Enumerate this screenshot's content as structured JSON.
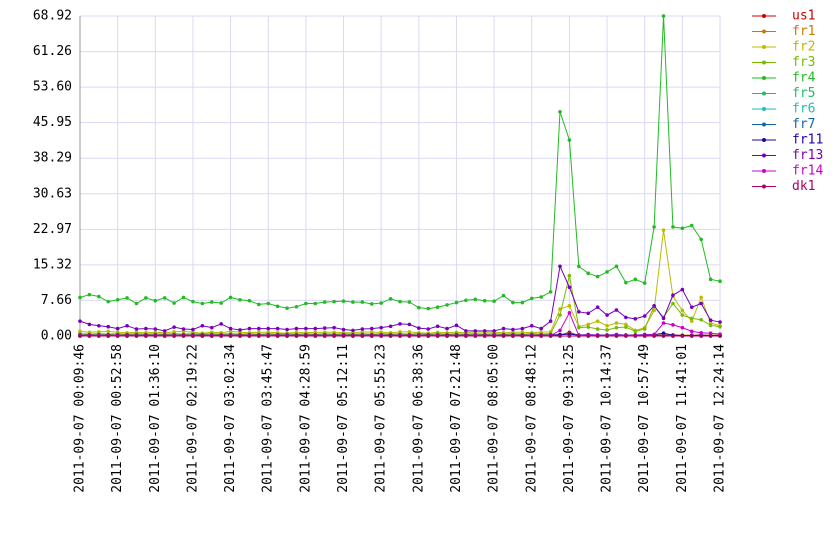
{
  "chart_data": {
    "type": "line",
    "categories": [
      "2011-09-07 00:09:46",
      null,
      null,
      null,
      "2011-09-07 00:52:58",
      null,
      null,
      null,
      "2011-09-07 01:36:10",
      null,
      null,
      null,
      "2011-09-07 02:19:22",
      null,
      null,
      null,
      "2011-09-07 03:02:34",
      null,
      null,
      null,
      "2011-09-07 03:45:47",
      null,
      null,
      null,
      "2011-09-07 04:28:59",
      null,
      null,
      null,
      "2011-09-07 05:12:11",
      null,
      null,
      null,
      "2011-09-07 05:55:23",
      null,
      null,
      null,
      "2011-09-07 06:38:36",
      null,
      null,
      null,
      "2011-09-07 07:21:48",
      null,
      null,
      null,
      "2011-09-07 08:05:00",
      null,
      null,
      null,
      "2011-09-07 08:48:12",
      null,
      null,
      null,
      "2011-09-07 09:31:25",
      null,
      null,
      null,
      "2011-09-07 10:14:37",
      null,
      null,
      null,
      "2011-09-07 10:57:49",
      null,
      null,
      null,
      "2011-09-07 11:41:01",
      null,
      null,
      null,
      "2011-09-07 12:24:14"
    ],
    "ylim": [
      0,
      68.92
    ],
    "yticks": [
      {
        "value": 0,
        "label": "0.00"
      },
      7.66,
      15.32,
      22.97,
      30.63,
      38.29,
      45.95,
      {
        "value": 53.6,
        "label": "53.60"
      },
      61.26,
      68.92
    ],
    "grid": true,
    "legend": "right",
    "series": [
      {
        "name": "us1",
        "color": "#cc0000",
        "values": [
          0,
          0,
          0,
          0,
          0,
          0,
          0,
          0,
          0,
          0,
          0,
          0,
          0,
          0,
          0,
          0,
          0,
          0,
          0,
          0,
          0,
          0,
          0,
          0,
          0,
          0,
          0,
          0,
          0,
          0,
          0,
          0,
          0,
          0,
          0,
          0,
          0,
          0,
          0,
          0,
          0,
          0,
          0,
          0,
          0,
          0,
          0,
          0,
          0,
          0,
          0,
          0.2,
          0.8,
          0.1,
          0.1,
          0.1,
          0.1,
          0.1,
          0.1,
          0.1,
          0.1,
          0.1,
          0.1,
          0.1,
          0.1,
          0.1,
          0.1,
          0.1,
          0.1
        ]
      },
      {
        "name": "fr1",
        "color": "#cc7700",
        "values": [
          0.2,
          0.2,
          0.2,
          0.2,
          0.2,
          0.2,
          0.2,
          0.2,
          0.2,
          0.2,
          0.2,
          0.2,
          0.2,
          0.2,
          0.2,
          0.2,
          0.2,
          0.2,
          0.2,
          0.2,
          0.2,
          0.2,
          0.2,
          0.2,
          0.2,
          0.2,
          0.2,
          0.2,
          0.2,
          0.2,
          0.2,
          0.2,
          0.2,
          0.2,
          0.2,
          0.2,
          0.2,
          0.2,
          0.2,
          0.2,
          0.2,
          0.2,
          0.2,
          0.2,
          0.2,
          0.2,
          0.2,
          0.2,
          0.2,
          0.2,
          0.2,
          0.3,
          0.5,
          0.2,
          0.2,
          0.2,
          0.2,
          0.2,
          0.2,
          0.2,
          0.2,
          0.3,
          0.4,
          0.2,
          0.2,
          0.2,
          0.2,
          0.2,
          0.2
        ]
      },
      {
        "name": "fr2",
        "color": "#bbbb00",
        "values": [
          1.0,
          0.8,
          0.9,
          1.0,
          0.8,
          0.7,
          0.8,
          0.7,
          0.8,
          0.7,
          0.9,
          1.0,
          0.8,
          0.6,
          0.8,
          0.7,
          1.0,
          0.8,
          0.7,
          0.8,
          0.8,
          0.7,
          0.6,
          0.8,
          0.7,
          0.8,
          0.8,
          0.8,
          0.7,
          0.7,
          0.9,
          0.8,
          0.8,
          0.7,
          0.9,
          0.9,
          0.7,
          0.6,
          0.8,
          0.7,
          0.8,
          0.7,
          0.9,
          0.8,
          0.8,
          0.7,
          0.8,
          0.8,
          0.7,
          0.8,
          0.9,
          5.8,
          6.5,
          2.0,
          2.5,
          3.2,
          2.2,
          2.8,
          2.5,
          1.2,
          1.8,
          5.5,
          22.8,
          8.5,
          5.5,
          3.2,
          8.3,
          2.8,
          2.2
        ]
      },
      {
        "name": "fr3",
        "color": "#77bb00",
        "values": [
          0.5,
          0.4,
          0.5,
          0.4,
          0.5,
          0.4,
          0.5,
          0.4,
          0.5,
          0.4,
          0.5,
          0.4,
          0.5,
          0.4,
          0.5,
          0.4,
          0.5,
          0.4,
          0.5,
          0.4,
          0.5,
          0.4,
          0.5,
          0.4,
          0.5,
          0.4,
          0.5,
          0.4,
          0.5,
          0.4,
          0.5,
          0.4,
          0.5,
          0.4,
          0.5,
          0.4,
          0.5,
          0.4,
          0.5,
          0.4,
          0.5,
          0.4,
          0.5,
          0.4,
          0.5,
          0.4,
          0.5,
          0.4,
          0.5,
          0.4,
          0.5,
          4.5,
          13.0,
          1.8,
          1.9,
          1.5,
          1.3,
          1.8,
          1.9,
          1.0,
          1.5,
          6.5,
          4.0,
          7.0,
          4.5,
          3.8,
          3.5,
          2.3,
          2.0
        ]
      },
      {
        "name": "fr4",
        "color": "#22bb22",
        "values": [
          8.3,
          8.9,
          8.5,
          7.4,
          7.8,
          8.2,
          7.0,
          8.2,
          7.6,
          8.2,
          7.1,
          8.3,
          7.4,
          7.0,
          7.3,
          7.1,
          8.3,
          7.8,
          7.6,
          6.8,
          7.0,
          6.4,
          6.0,
          6.3,
          7.0,
          7.0,
          7.3,
          7.4,
          7.5,
          7.3,
          7.3,
          6.9,
          7.1,
          8.0,
          7.4,
          7.3,
          6.1,
          5.9,
          6.2,
          6.7,
          7.2,
          7.7,
          7.9,
          7.6,
          7.5,
          8.7,
          7.2,
          7.2,
          8.1,
          8.4,
          9.5,
          48.3,
          42.2,
          15.0,
          13.5,
          12.8,
          13.8,
          15.0,
          11.5,
          12.2,
          11.4,
          23.5,
          68.92,
          23.5,
          23.2,
          23.8,
          20.8,
          12.2,
          11.8
        ]
      },
      {
        "name": "fr5",
        "color": "#22bb66",
        "values": [
          0,
          0,
          0,
          0,
          0,
          0,
          0,
          0,
          0,
          0,
          0,
          0,
          0,
          0,
          0,
          0,
          0,
          0,
          0,
          0,
          0,
          0,
          0,
          0,
          0,
          0,
          0,
          0,
          0,
          0,
          0,
          0,
          0,
          0,
          0,
          0,
          0,
          0,
          0,
          0,
          0,
          0,
          0,
          0,
          0,
          0,
          0,
          0,
          0,
          0,
          0,
          0,
          0,
          0,
          0,
          0,
          0,
          0,
          0,
          0,
          0,
          0,
          0,
          0,
          0,
          0,
          0,
          0,
          0
        ]
      },
      {
        "name": "fr6",
        "color": "#22bbbb",
        "values": [
          0,
          0,
          0,
          0,
          0,
          0,
          0,
          0,
          0,
          0,
          0,
          0,
          0,
          0,
          0,
          0,
          0,
          0,
          0,
          0,
          0,
          0,
          0,
          0,
          0,
          0,
          0,
          0,
          0,
          0,
          0,
          0,
          0,
          0,
          0,
          0,
          0,
          0,
          0,
          0,
          0,
          0,
          0,
          0,
          0,
          0,
          0,
          0,
          0,
          0,
          0,
          0,
          0,
          0,
          0,
          0,
          0,
          0,
          0,
          0,
          0,
          0,
          0,
          0,
          0,
          0,
          0,
          0,
          0
        ]
      },
      {
        "name": "fr7",
        "color": "#1166aa",
        "values": [
          0,
          0,
          0,
          0,
          0,
          0,
          0,
          0,
          0,
          0,
          0,
          0,
          0,
          0,
          0,
          0,
          0,
          0,
          0,
          0,
          0,
          0,
          0,
          0,
          0,
          0,
          0,
          0,
          0,
          0,
          0,
          0,
          0,
          0,
          0,
          0,
          0,
          0,
          0,
          0,
          0,
          0,
          0,
          0,
          0,
          0,
          0,
          0,
          0,
          0,
          0,
          0,
          0,
          0,
          0,
          0,
          0,
          0,
          0,
          0,
          0,
          0,
          0,
          0,
          0,
          0,
          0,
          0,
          0
        ]
      },
      {
        "name": "fr11",
        "color": "#2200aa",
        "values": [
          0.2,
          0.2,
          0.2,
          0.2,
          0.2,
          0.2,
          0.2,
          0.2,
          0.2,
          0.2,
          0.2,
          0.2,
          0.2,
          0.2,
          0.2,
          0.2,
          0.2,
          0.2,
          0.2,
          0.2,
          0.2,
          0.2,
          0.2,
          0.2,
          0.2,
          0.2,
          0.2,
          0.2,
          0.2,
          0.2,
          0.2,
          0.2,
          0.2,
          0.2,
          0.2,
          0.2,
          0.2,
          0.2,
          0.2,
          0.2,
          0.2,
          0.2,
          0.2,
          0.2,
          0.2,
          0.2,
          0.2,
          0.2,
          0.2,
          0.2,
          0.2,
          0.3,
          0.4,
          0.2,
          0.3,
          0.2,
          0.2,
          0.3,
          0.2,
          0.2,
          0.3,
          0.3,
          0.6,
          0.2,
          0.1,
          0.1,
          0.2,
          0.1,
          0.1
        ]
      },
      {
        "name": "fr13",
        "color": "#7700bb",
        "values": [
          3.2,
          2.5,
          2.2,
          2.0,
          1.6,
          2.2,
          1.5,
          1.6,
          1.5,
          1.1,
          1.9,
          1.5,
          1.4,
          2.2,
          1.8,
          2.6,
          1.6,
          1.3,
          1.6,
          1.6,
          1.6,
          1.6,
          1.4,
          1.6,
          1.6,
          1.6,
          1.7,
          1.8,
          1.4,
          1.2,
          1.5,
          1.6,
          1.8,
          2.1,
          2.6,
          2.5,
          1.7,
          1.5,
          2.1,
          1.6,
          2.3,
          1.1,
          1.1,
          1.1,
          1.1,
          1.6,
          1.4,
          1.6,
          2.2,
          1.6,
          3.2,
          15.0,
          10.5,
          5.2,
          4.9,
          6.2,
          4.5,
          5.6,
          4.0,
          3.7,
          4.3,
          6.5,
          3.8,
          8.8,
          10.0,
          6.2,
          7.0,
          3.4,
          3.0
        ]
      },
      {
        "name": "fr14",
        "color": "#cc00cc",
        "values": [
          0.1,
          0.1,
          0.1,
          0.1,
          0.1,
          0.1,
          0.1,
          0.1,
          0.1,
          0.1,
          0.1,
          0.1,
          0.1,
          0.1,
          0.1,
          0.1,
          0.1,
          0.1,
          0.1,
          0.1,
          0.1,
          0.1,
          0.1,
          0.1,
          0.1,
          0.1,
          0.1,
          0.1,
          0.1,
          0.1,
          0.1,
          0.1,
          0.1,
          0.1,
          0.1,
          0.1,
          0.1,
          0.1,
          0.1,
          0.1,
          0.1,
          0.1,
          0.1,
          0.1,
          0.1,
          0.1,
          0.1,
          0.1,
          0.1,
          0.1,
          0.1,
          1.2,
          5.0,
          0.1,
          0.2,
          0.1,
          0.1,
          0.2,
          0.1,
          0.1,
          0.2,
          0.3,
          2.8,
          2.4,
          1.8,
          1.0,
          0.7,
          0.6,
          0.4
        ]
      },
      {
        "name": "dk1",
        "color": "#aa0066",
        "values": [
          0,
          0,
          0,
          0,
          0,
          0,
          0,
          0,
          0,
          0,
          0,
          0,
          0,
          0,
          0,
          0,
          0,
          0,
          0,
          0,
          0,
          0,
          0,
          0,
          0,
          0,
          0,
          0,
          0,
          0,
          0,
          0,
          0,
          0,
          0,
          0,
          0,
          0,
          0,
          0,
          0,
          0,
          0,
          0,
          0,
          0,
          0,
          0,
          0,
          0,
          0,
          0,
          0,
          0,
          0,
          0,
          0,
          0,
          0,
          0,
          0,
          0,
          0,
          0,
          0,
          0,
          0,
          0,
          0
        ]
      }
    ]
  }
}
